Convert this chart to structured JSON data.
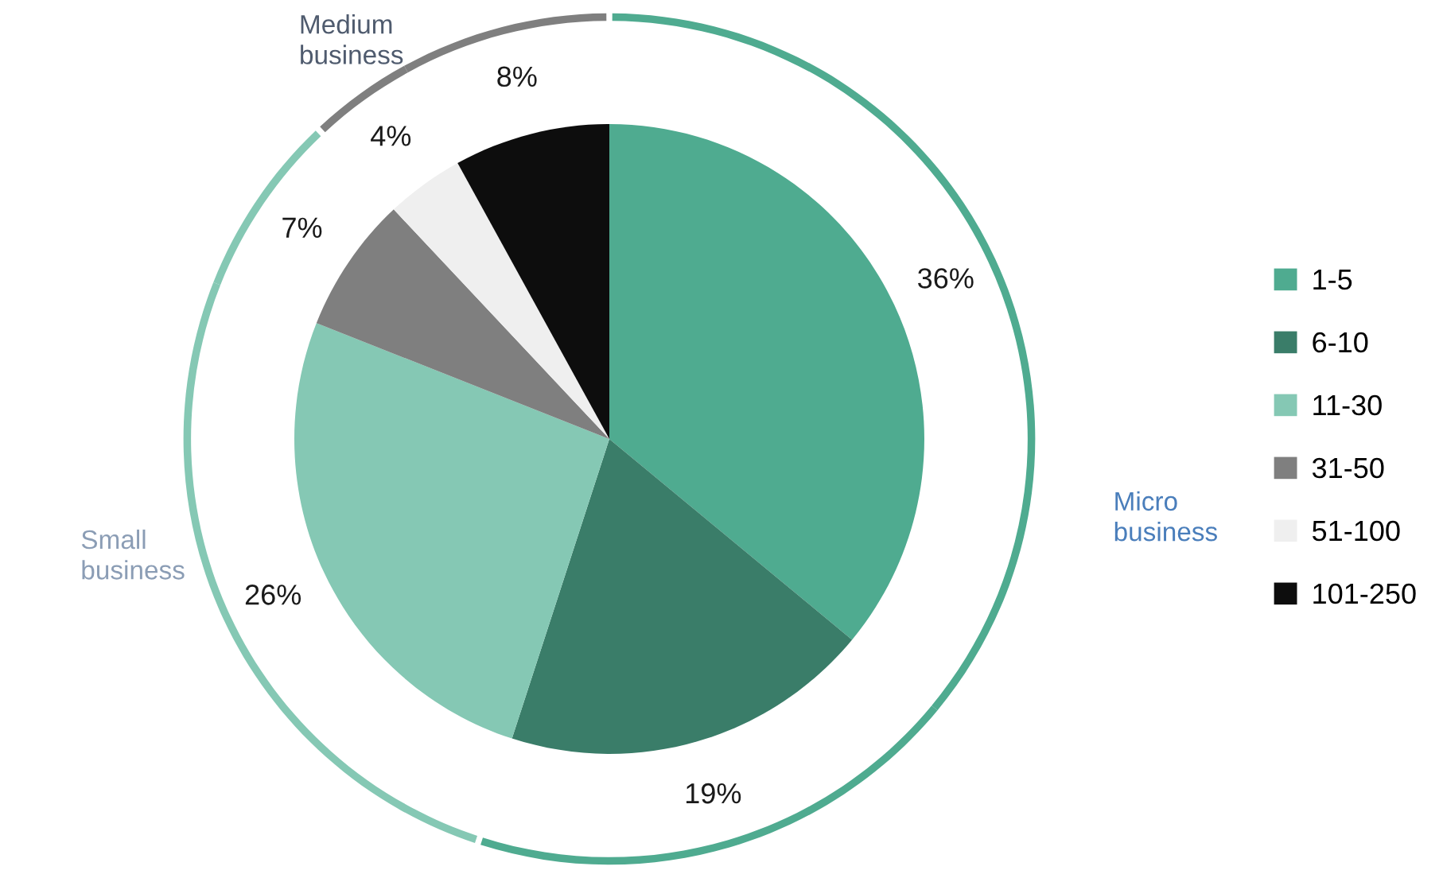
{
  "chart_data": {
    "type": "pie",
    "categories": [
      "1-5",
      "6-10",
      "11-30",
      "31-50",
      "51-100",
      "101-250"
    ],
    "series": [
      {
        "values": [
          36,
          19,
          26,
          7,
          4,
          8
        ],
        "colors": [
          "#4fab90",
          "#3a7d69",
          "#85c8b4",
          "#7f7f7f",
          "#efefef",
          "#0d0d0d"
        ],
        "value_labels": [
          "36%",
          "19%",
          "26%",
          "7%",
          "4%",
          "8%"
        ]
      },
      {
        "type": "donut",
        "values": [
          36,
          19,
          26,
          7,
          4,
          8
        ],
        "colors": [
          "#4fab90",
          "#4fab90",
          "#85c8b4",
          "#85c8b4",
          "#7f7f7f",
          "#7f7f7f"
        ]
      }
    ],
    "annotations": [
      "Micro business",
      "Small business",
      "Medium business"
    ],
    "legend": "right"
  }
}
